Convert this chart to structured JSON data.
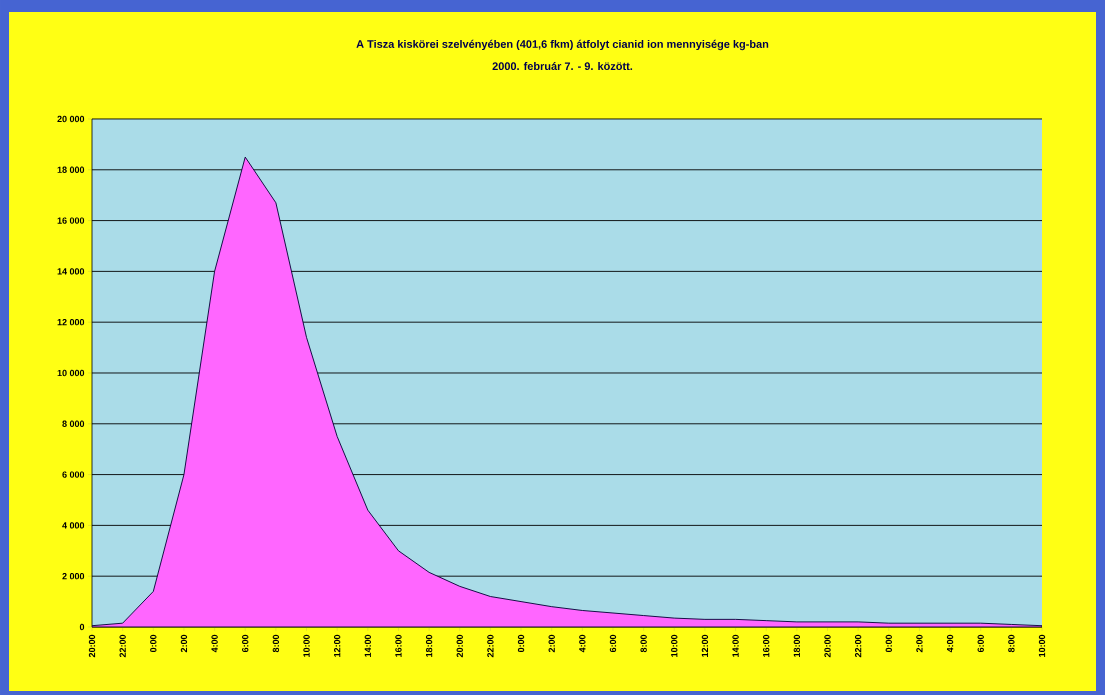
{
  "chart_data": {
    "type": "area",
    "title": "A Tisza kiskörei szelvényében (401,6 fkm)  átfolyt cianid ion mennyisége kg-ban",
    "subtitle": "2000. február 7. - 9. között.",
    "categories": [
      "20:00",
      "22:00",
      "0:00",
      "2:00",
      "4:00",
      "6:00",
      "8:00",
      "10:00",
      "12:00",
      "14:00",
      "16:00",
      "18:00",
      "20:00",
      "22:00",
      "0:00",
      "2:00",
      "4:00",
      "6:00",
      "8:00",
      "10:00",
      "12:00",
      "14:00",
      "16:00",
      "18:00",
      "20:00",
      "22:00",
      "0:00",
      "2:00",
      "4:00",
      "6:00",
      "8:00",
      "10:00"
    ],
    "values": [
      50,
      150,
      1400,
      6000,
      14000,
      18500,
      16700,
      11400,
      7500,
      4600,
      3000,
      2150,
      1600,
      1200,
      1000,
      800,
      650,
      550,
      450,
      350,
      300,
      300,
      250,
      200,
      200,
      200,
      150,
      150,
      150,
      150,
      100,
      50
    ],
    "color": "#ff66ff",
    "ylim": [
      0,
      20000
    ],
    "yticks": [
      0,
      {
        "value": 2000,
        "label": "2 000"
      },
      {
        "value": 4000,
        "label": "4 000"
      },
      {
        "value": 6000,
        "label": "6 000"
      },
      {
        "value": 8000,
        "label": "8 000"
      },
      {
        "value": 10000,
        "label": "10 000"
      },
      {
        "value": 12000,
        "label": "12 000"
      },
      {
        "value": 14000,
        "label": "14 000"
      },
      {
        "value": 16000,
        "label": "16 000"
      },
      {
        "value": 18000,
        "label": "18 000"
      },
      {
        "value": 20000,
        "label": "20 000"
      }
    ],
    "grid": "y"
  }
}
